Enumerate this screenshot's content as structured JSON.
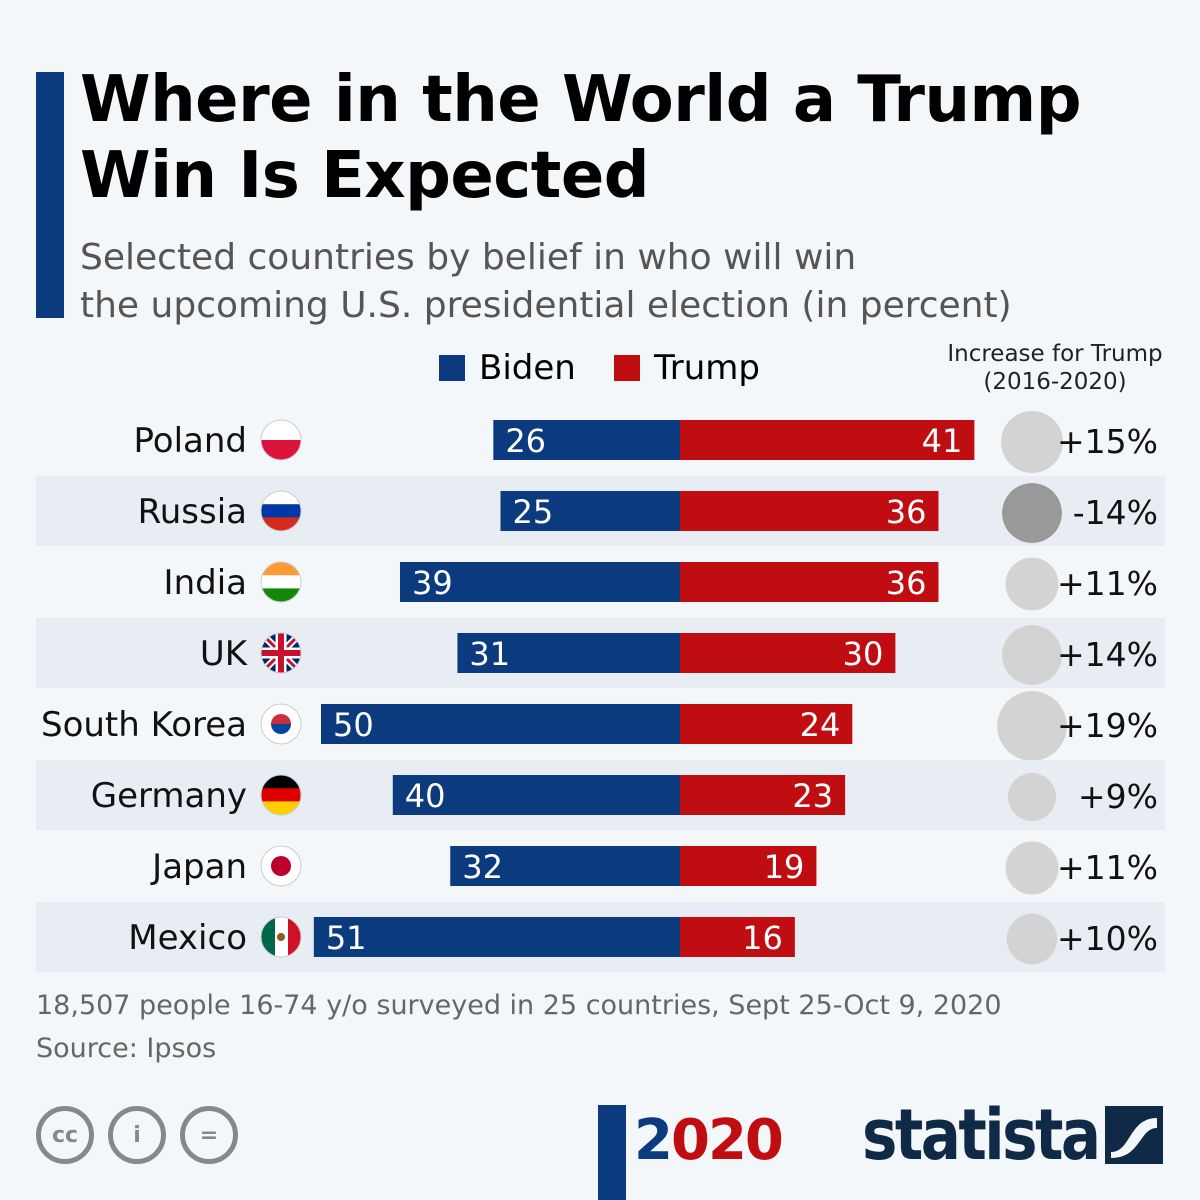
{
  "title": "Where in the World a Trump Win Is Expected",
  "subtitle_line1": "Selected countries by belief in who will win",
  "subtitle_line2": "the upcoming U.S. presidential election (in percent)",
  "chart_data": {
    "type": "bar",
    "orientation": "horizontal-diverging",
    "categories": [
      "Poland",
      "Russia",
      "India",
      "UK",
      "South Korea",
      "Germany",
      "Japan",
      "Mexico"
    ],
    "series": [
      {
        "name": "Biden",
        "color": "#0b3a7e",
        "values": [
          26,
          25,
          39,
          31,
          50,
          40,
          32,
          51
        ]
      },
      {
        "name": "Trump",
        "color": "#c00d12",
        "values": [
          41,
          36,
          36,
          30,
          24,
          23,
          19,
          16
        ]
      }
    ],
    "change_header_line1": "Increase for Trump",
    "change_header_line2": "(2016-2020)",
    "change_values": [
      15,
      -14,
      11,
      14,
      19,
      9,
      11,
      10
    ],
    "change_labels": [
      "+15%",
      "-14%",
      "+11%",
      "+14%",
      "+19%",
      "+9%",
      "+11%",
      "+10%"
    ],
    "legend_position": "top"
  },
  "footer": {
    "note": "18,507 people 16-74 y/o surveyed in 25 countries, Sept 25-Oct 9, 2020",
    "source": "Source: Ipsos"
  },
  "branding": {
    "year_logo": "2020",
    "brand": "statista"
  }
}
